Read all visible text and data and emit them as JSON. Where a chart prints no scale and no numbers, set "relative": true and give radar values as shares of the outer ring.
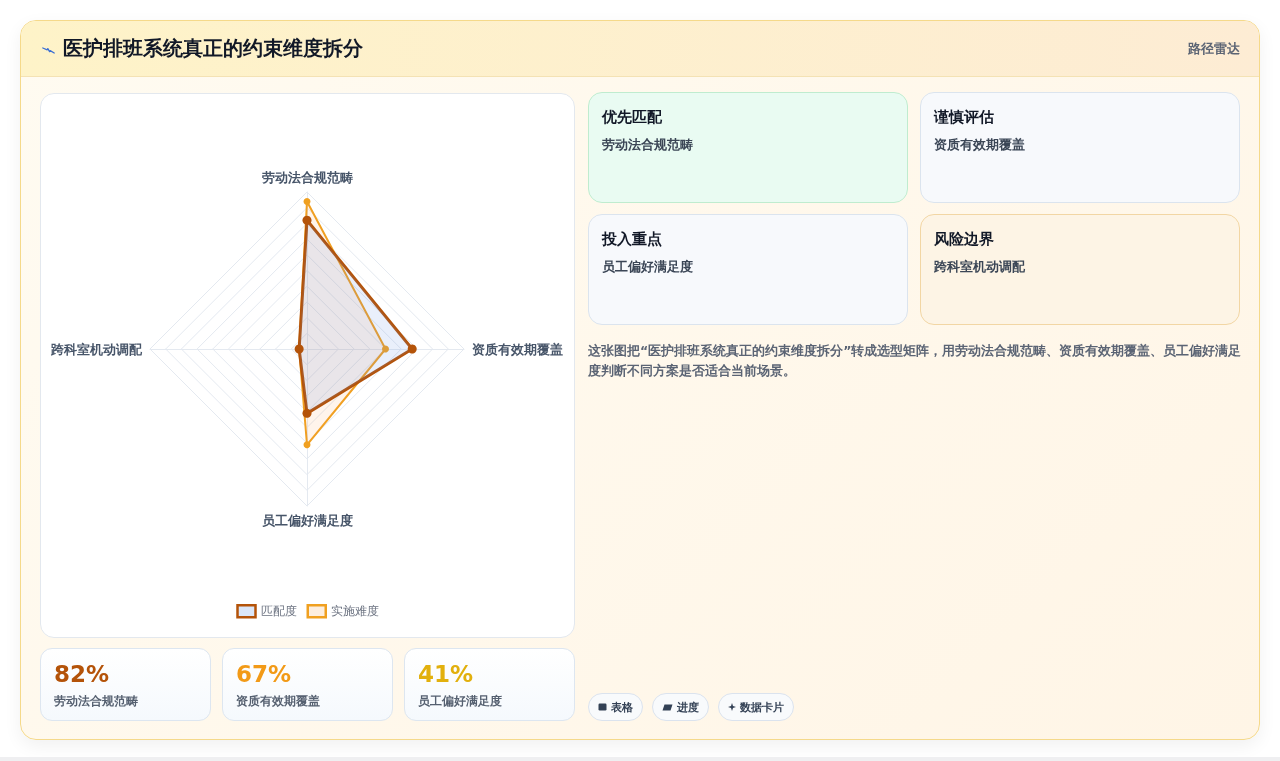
{
  "chart_data": [
    {
      "type": "other",
      "title": "医护排班系统真正的约束维度拆分",
      "subtitle": "路径雷达"
    },
    {
      "type": "radar",
      "categories": [
        "劳动法合规范畴",
        "资质有效期覆盖",
        "员工偏好满足度",
        "跨科室机动调配"
      ],
      "relative": true,
      "series": [
        {
          "name": "匹配度",
          "color": "#b45309",
          "values": [
            0.82,
            0.67,
            0.41,
            0.05
          ]
        },
        {
          "name": "实施难度",
          "color": "#f0a020",
          "values": [
            0.94,
            0.5,
            0.61,
            0.05
          ]
        }
      ],
      "grid": true,
      "legend": "bottom",
      "marker": "circle",
      "line_style": "solid"
    },
    {
      "type": "other",
      "categories": [
        "优先匹配",
        "谨慎评估",
        "投入重点",
        "风险边界"
      ],
      "annotations": [
        "劳动法合规范畴",
        "资质有效期覆盖",
        "员工偏好满足度",
        "跨科室机动调配",
        "这张图把“医护排班系统真正的约束维度拆分”转成选型矩阵，用劳动法合规范畴、资质有效期覆盖、员工偏好满足度判断不同方案是否适合当前场景。"
      ]
    },
    {
      "type": "other",
      "categories": [
        "劳动法合规范畴",
        "资质有效期覆盖",
        "员工偏好满足度"
      ],
      "annotations": [
        "82%",
        "67%",
        "41%"
      ]
    },
    {
      "type": "other",
      "annotations": [
        "表格",
        "进度",
        "数据卡片"
      ]
    }
  ]
}
